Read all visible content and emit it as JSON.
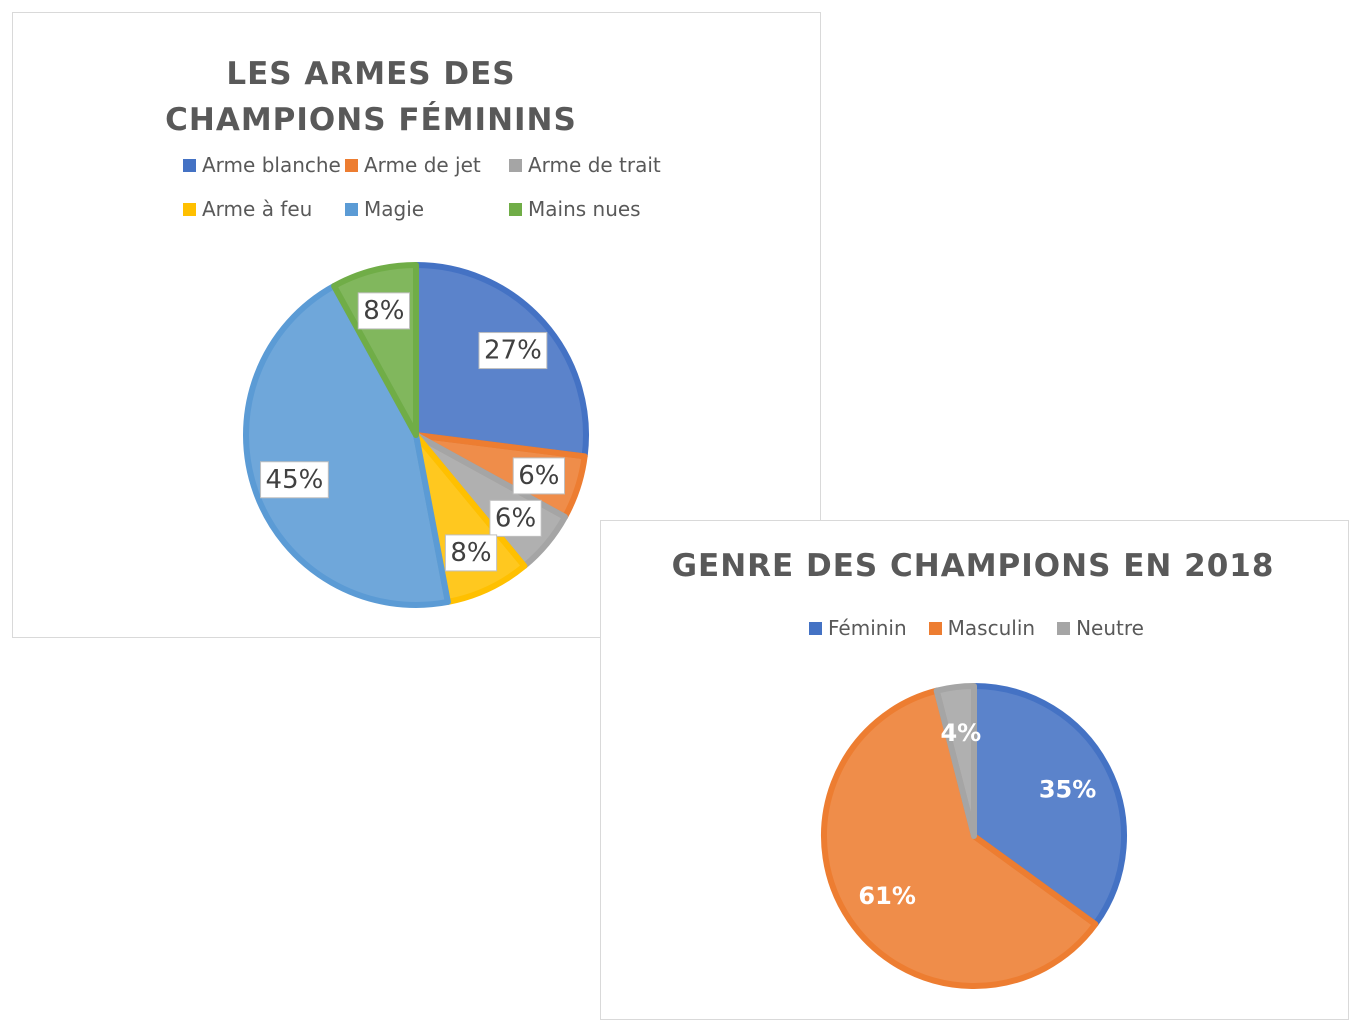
{
  "chart_data": [
    {
      "type": "pie",
      "title": "LES ARMES DES CHAMPIONS FÉMININS",
      "categories": [
        "Arme blanche",
        "Arme de jet",
        "Arme de trait",
        "Arme à feu",
        "Magie",
        "Mains nues"
      ],
      "values": [
        27,
        6,
        6,
        8,
        45,
        8
      ],
      "value_labels": [
        "27%",
        "6%",
        "6%",
        "8%",
        "45%",
        "8%"
      ],
      "colors": [
        "#4472c4",
        "#ed7d31",
        "#a5a5a5",
        "#ffc000",
        "#5b9bd5",
        "#70ad47"
      ],
      "legend": "top"
    },
    {
      "type": "pie",
      "title": "GENRE DES CHAMPIONS EN 2018",
      "categories": [
        "Féminin",
        "Masculin",
        "Neutre"
      ],
      "values": [
        35,
        61,
        4
      ],
      "value_labels": [
        "35%",
        "61%",
        "4%"
      ],
      "colors": [
        "#4472c4",
        "#ed7d31",
        "#a5a5a5"
      ],
      "legend": "top"
    }
  ]
}
